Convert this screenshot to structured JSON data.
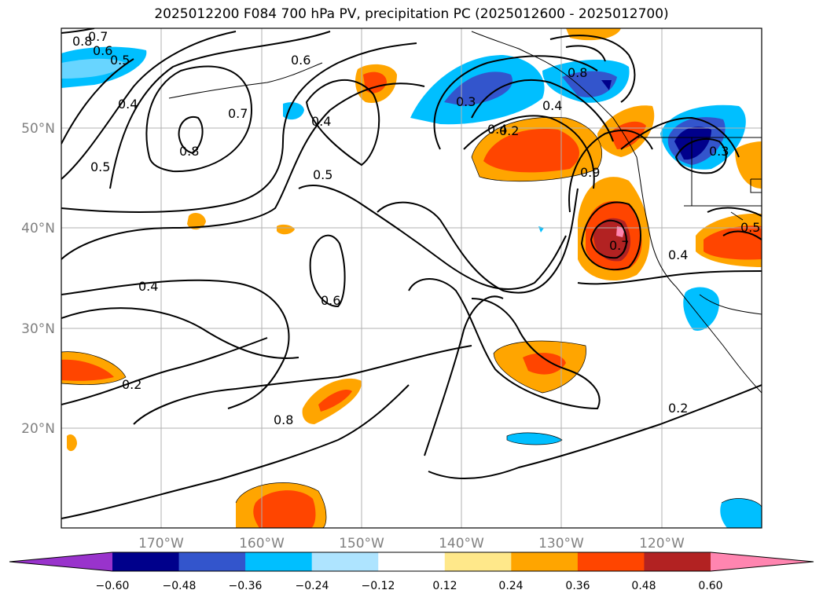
{
  "title": "2025012200 F084 700 hPa PV, precipitation PC (2025012600 - 2025012700)",
  "map": {
    "lon_labels": [
      "170°W",
      "160°W",
      "150°W",
      "140°W",
      "130°W",
      "120°W"
    ],
    "lat_labels": [
      "50°N",
      "40°N",
      "30°N",
      "20°N"
    ],
    "contour_labels": [
      "0.8",
      "0.7",
      "0.6",
      "0.5",
      "0.4",
      "0.6",
      "0.7",
      "0.8",
      "0.5",
      "0.4",
      "0.5",
      "0.3",
      "0.2",
      "0.4",
      "0.8",
      "0.9",
      "0.3",
      "0.4",
      "0.7",
      "0.4",
      "0.5",
      "0.6",
      "0.2",
      "0.8",
      "0.2",
      "0.4"
    ]
  },
  "colorbar": {
    "labels": [
      "−0.60",
      "−0.48",
      "−0.36",
      "−0.24",
      "−0.12",
      "0.12",
      "0.24",
      "0.36",
      "0.48",
      "0.60"
    ],
    "colors": [
      "#9933cc",
      "#00008b",
      "#3355cc",
      "#00bfff",
      "#aee4ff",
      "#ffffff",
      "#ffe88a",
      "#ffa500",
      "#ff4500",
      "#b22222",
      "#ff85b0"
    ]
  }
}
